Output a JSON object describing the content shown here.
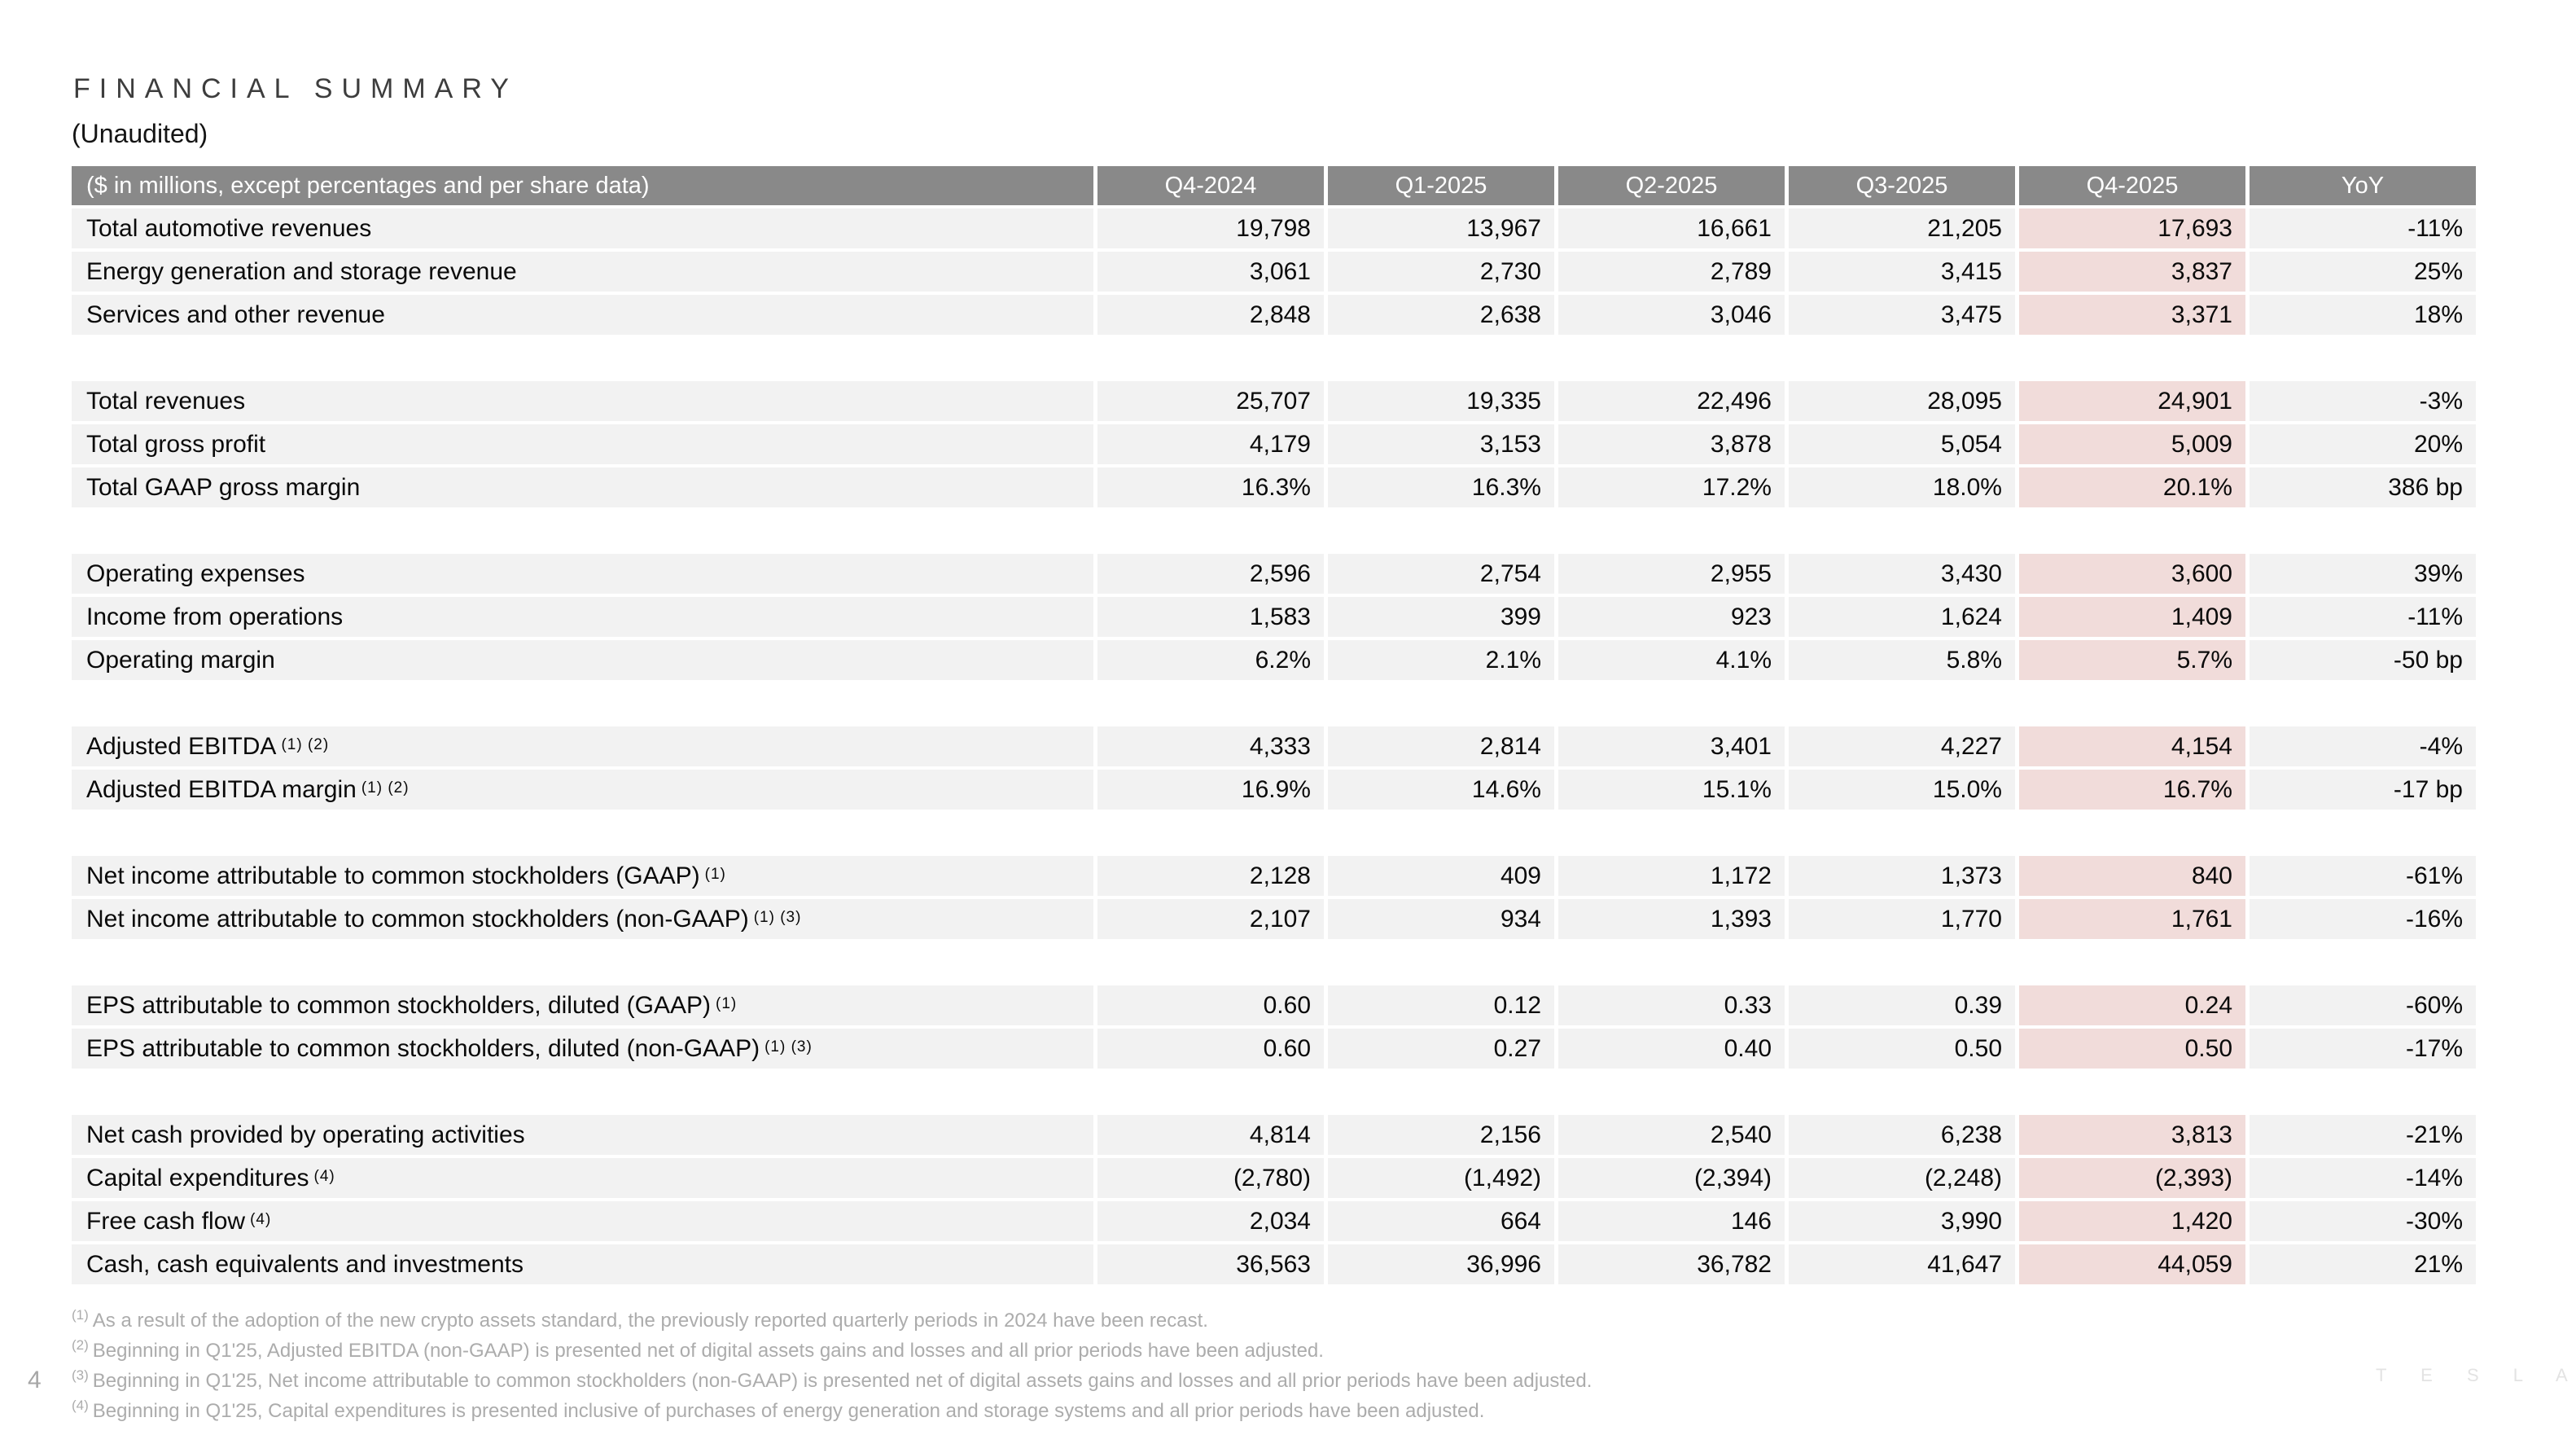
{
  "page": {
    "title": "F I N A N C I A L   S U M M A R Y",
    "title_plain": "FINANCIAL SUMMARY",
    "subtitle": "(Unaudited)",
    "page_number": "4",
    "watermark": "T E S L A"
  },
  "colors": {
    "header_bg": "#898989",
    "row_bg": "#f2f2f2",
    "highlight_bg": "#f1dcda",
    "text": "#0a0a0a",
    "footnote": "#acacac",
    "watermark": "#e3e3e3"
  },
  "table": {
    "header_label": "($ in millions, except percentages and per share data)",
    "columns": [
      "Q4-2024",
      "Q1-2025",
      "Q2-2025",
      "Q3-2025",
      "Q4-2025",
      "YoY"
    ],
    "highlight_column": "Q4-2025",
    "rows": [
      {
        "type": "data",
        "label": "Total automotive revenues",
        "sup": "",
        "values": [
          "19,798",
          "13,967",
          "16,661",
          "21,205",
          "17,693",
          "-11%"
        ]
      },
      {
        "type": "data",
        "label": "Energy generation and storage revenue",
        "sup": "",
        "values": [
          "3,061",
          "2,730",
          "2,789",
          "3,415",
          "3,837",
          "25%"
        ]
      },
      {
        "type": "data",
        "label": "Services and other revenue",
        "sup": "",
        "values": [
          "2,848",
          "2,638",
          "3,046",
          "3,475",
          "3,371",
          "18%"
        ]
      },
      {
        "type": "spacer"
      },
      {
        "type": "data",
        "label": "Total revenues",
        "sup": "",
        "values": [
          "25,707",
          "19,335",
          "22,496",
          "28,095",
          "24,901",
          "-3%"
        ]
      },
      {
        "type": "data",
        "label": "Total gross profit",
        "sup": "",
        "values": [
          "4,179",
          "3,153",
          "3,878",
          "5,054",
          "5,009",
          "20%"
        ]
      },
      {
        "type": "data",
        "label": "Total GAAP gross margin",
        "sup": "",
        "values": [
          "16.3%",
          "16.3%",
          "17.2%",
          "18.0%",
          "20.1%",
          "386 bp"
        ]
      },
      {
        "type": "spacer"
      },
      {
        "type": "data",
        "label": "Operating expenses",
        "sup": "",
        "values": [
          "2,596",
          "2,754",
          "2,955",
          "3,430",
          "3,600",
          "39%"
        ]
      },
      {
        "type": "data",
        "label": "Income from operations",
        "sup": "",
        "values": [
          "1,583",
          "399",
          "923",
          "1,624",
          "1,409",
          "-11%"
        ]
      },
      {
        "type": "data",
        "label": "Operating margin",
        "sup": "",
        "values": [
          "6.2%",
          "2.1%",
          "4.1%",
          "5.8%",
          "5.7%",
          "-50 bp"
        ]
      },
      {
        "type": "spacer"
      },
      {
        "type": "data",
        "label": "Adjusted EBITDA",
        "sup": "(1) (2)",
        "values": [
          "4,333",
          "2,814",
          "3,401",
          "4,227",
          "4,154",
          "-4%"
        ]
      },
      {
        "type": "data",
        "label": "Adjusted EBITDA margin",
        "sup": "(1) (2)",
        "values": [
          "16.9%",
          "14.6%",
          "15.1%",
          "15.0%",
          "16.7%",
          "-17 bp"
        ]
      },
      {
        "type": "spacer"
      },
      {
        "type": "data",
        "label": "Net income attributable to common stockholders (GAAP)",
        "sup": "(1)",
        "values": [
          "2,128",
          "409",
          "1,172",
          "1,373",
          "840",
          "-61%"
        ]
      },
      {
        "type": "data",
        "label": "Net income attributable to common stockholders (non-GAAP)",
        "sup": "(1) (3)",
        "values": [
          "2,107",
          "934",
          "1,393",
          "1,770",
          "1,761",
          "-16%"
        ]
      },
      {
        "type": "spacer"
      },
      {
        "type": "data",
        "label": "EPS attributable to common stockholders, diluted (GAAP)",
        "sup": "(1)",
        "values": [
          "0.60",
          "0.12",
          "0.33",
          "0.39",
          "0.24",
          "-60%"
        ]
      },
      {
        "type": "data",
        "label": "EPS attributable to common stockholders, diluted (non-GAAP)",
        "sup": "(1) (3)",
        "values": [
          "0.60",
          "0.27",
          "0.40",
          "0.50",
          "0.50",
          "-17%"
        ]
      },
      {
        "type": "spacer"
      },
      {
        "type": "data",
        "label": "Net cash provided by operating activities",
        "sup": "",
        "values": [
          "4,814",
          "2,156",
          "2,540",
          "6,238",
          "3,813",
          "-21%"
        ]
      },
      {
        "type": "data",
        "label": "Capital expenditures",
        "sup": "(4)",
        "values": [
          "(2,780)",
          "(1,492)",
          "(2,394)",
          "(2,248)",
          "(2,393)",
          "-14%"
        ]
      },
      {
        "type": "data",
        "label": "Free cash flow",
        "sup": "(4)",
        "values": [
          "2,034",
          "664",
          "146",
          "3,990",
          "1,420",
          "-30%"
        ]
      },
      {
        "type": "data",
        "label": "Cash, cash equivalents and investments",
        "sup": "",
        "values": [
          "36,563",
          "36,996",
          "36,782",
          "41,647",
          "44,059",
          "21%"
        ]
      }
    ]
  },
  "footnotes": [
    {
      "marker": "(1)",
      "text": "As a result of the adoption of the new crypto assets standard, the previously reported quarterly periods in 2024 have been recast."
    },
    {
      "marker": "(2)",
      "text": "Beginning in Q1'25, Adjusted EBITDA (non-GAAP) is presented net of digital assets gains and losses and all prior periods have been adjusted."
    },
    {
      "marker": "(3)",
      "text": "Beginning in Q1'25, Net income attributable to common stockholders (non-GAAP) is presented net of digital assets gains and losses and all prior periods have been adjusted."
    },
    {
      "marker": "(4)",
      "text": "Beginning in Q1'25, Capital expenditures is presented inclusive of purchases of energy generation and storage systems and all prior periods have been adjusted."
    }
  ]
}
